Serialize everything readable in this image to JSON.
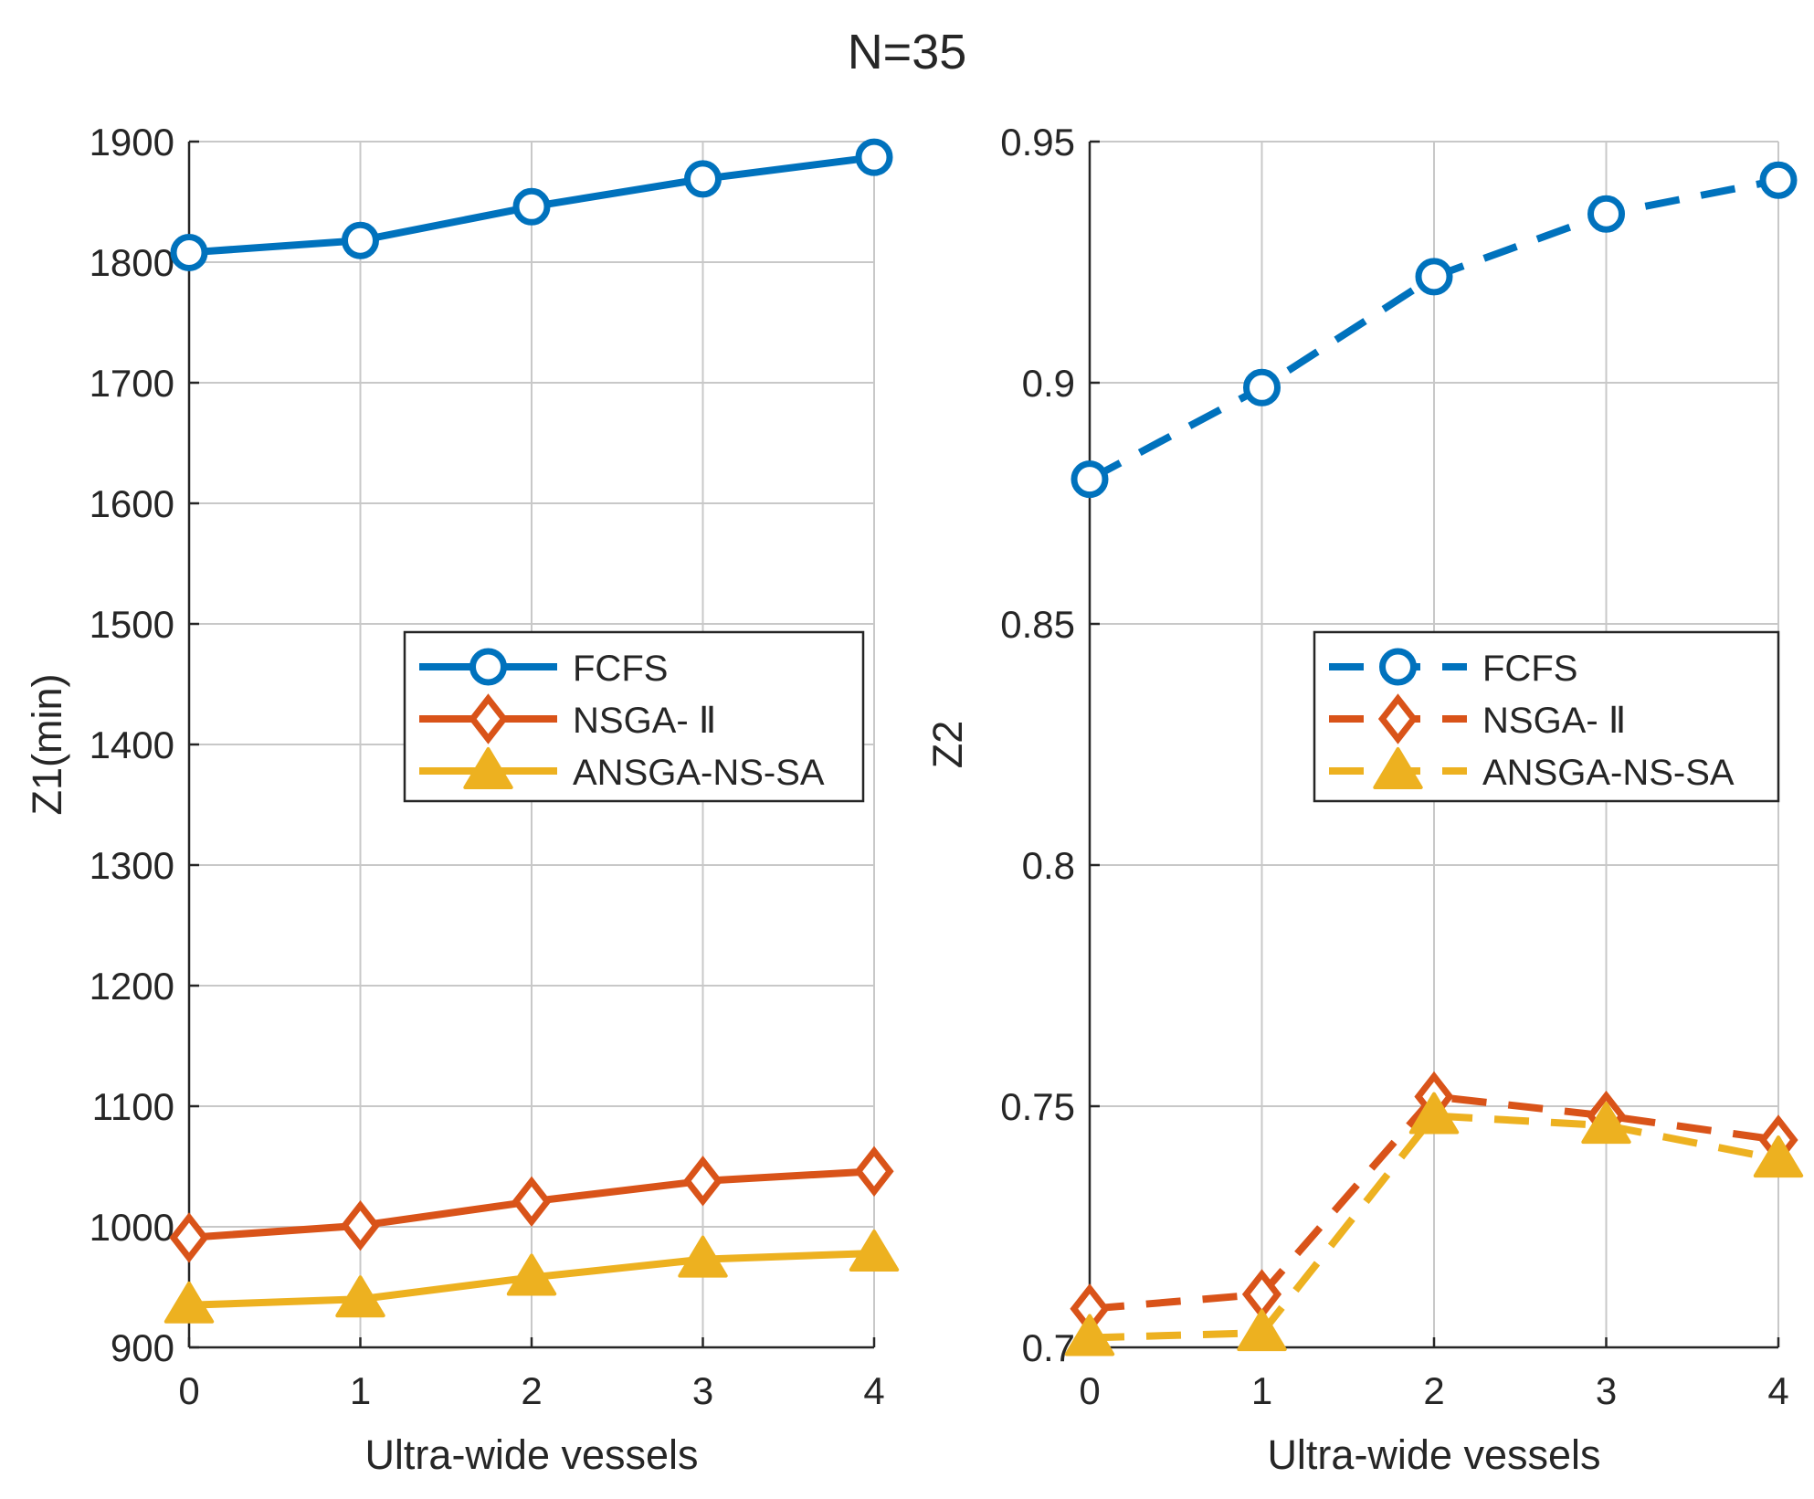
{
  "figure_title": "N=35",
  "colors": {
    "fcfs": "#0072BD",
    "nsga": "#D95319",
    "ansga": "#EDB120",
    "grid": "#c8c8c8",
    "axis": "#262626"
  },
  "legend_entries": [
    "FCFS",
    "NSGA- Ⅱ",
    "ANSGA-NS-SA"
  ],
  "chart_data": [
    {
      "type": "line",
      "title": "",
      "xlabel": "Ultra-wide vessels",
      "ylabel": "Z1(min)",
      "x": [
        0,
        1,
        2,
        3,
        4
      ],
      "xlim": [
        0,
        4
      ],
      "ylim": [
        900,
        1900
      ],
      "xticks": [
        "0",
        "1",
        "2",
        "3",
        "4"
      ],
      "yticks": [
        "900",
        "1000",
        "1100",
        "1200",
        "1300",
        "1400",
        "1500",
        "1600",
        "1700",
        "1800",
        "1900"
      ],
      "grid": true,
      "line_style": "solid",
      "legend_position": "east",
      "series": [
        {
          "name": "FCFS",
          "marker": "circle",
          "values": [
            1808,
            1818,
            1846,
            1869,
            1887
          ]
        },
        {
          "name": "NSGA- Ⅱ",
          "marker": "diamond",
          "values": [
            991,
            1001,
            1021,
            1038,
            1046
          ]
        },
        {
          "name": "ANSGA-NS-SA",
          "marker": "triangle",
          "values": [
            935,
            940,
            958,
            973,
            978
          ]
        }
      ]
    },
    {
      "type": "line",
      "title": "",
      "xlabel": "Ultra-wide vessels",
      "ylabel": "Z2",
      "x": [
        0,
        1,
        2,
        3,
        4
      ],
      "xlim": [
        0,
        4
      ],
      "ylim": [
        0.7,
        0.95
      ],
      "xticks": [
        "0",
        "1",
        "2",
        "3",
        "4"
      ],
      "yticks": [
        "0.7",
        "0.75",
        "0.8",
        "0.85",
        "0.9",
        "0.95"
      ],
      "grid": true,
      "line_style": "dashed",
      "legend_position": "east",
      "series": [
        {
          "name": "FCFS",
          "marker": "circle",
          "values": [
            0.88,
            0.899,
            0.922,
            0.935,
            0.942
          ]
        },
        {
          "name": "NSGA- Ⅱ",
          "marker": "diamond",
          "values": [
            0.708,
            0.711,
            0.752,
            0.748,
            0.743
          ]
        },
        {
          "name": "ANSGA-NS-SA",
          "marker": "triangle",
          "values": [
            0.702,
            0.703,
            0.748,
            0.746,
            0.739
          ]
        }
      ]
    }
  ]
}
